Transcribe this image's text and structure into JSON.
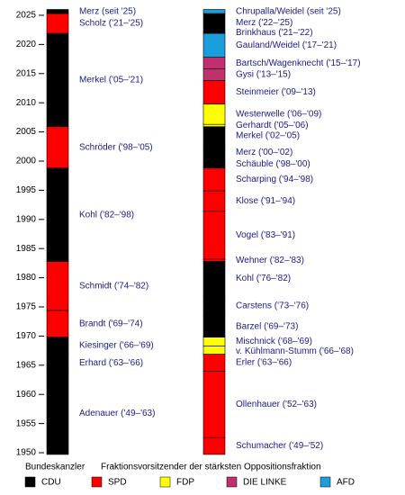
{
  "chart_data": {
    "type": "timeline",
    "ylim": [
      1949,
      2026
    ],
    "yticks": [
      1950,
      1955,
      1960,
      1965,
      1970,
      1975,
      1980,
      1985,
      1990,
      1995,
      2000,
      2005,
      2010,
      2015,
      2020,
      2025
    ],
    "columns": [
      {
        "name": "Bundeskanzler",
        "segments": [
          {
            "label": "Adenauer ('49–'63)",
            "party": "CDU",
            "start": 1949.7,
            "end": 1963.8
          },
          {
            "label": "Erhard ('63–'66)",
            "party": "CDU",
            "start": 1963.8,
            "end": 1966.9
          },
          {
            "label": "Kiesinger ('66–'69)",
            "party": "CDU",
            "start": 1966.9,
            "end": 1969.8
          },
          {
            "label": "Brandt ('69–'74)",
            "party": "SPD",
            "start": 1969.8,
            "end": 1974.4
          },
          {
            "label": "Schmidt ('74–'82)",
            "party": "SPD",
            "start": 1974.4,
            "end": 1982.8
          },
          {
            "label": "Kohl ('82–'98)",
            "party": "CDU",
            "start": 1982.8,
            "end": 1998.8
          },
          {
            "label": "Schröder ('98–'05)",
            "party": "SPD",
            "start": 1998.8,
            "end": 2005.9
          },
          {
            "label": "Merkel ('05–'21)",
            "party": "CDU",
            "start": 2005.9,
            "end": 2021.9
          },
          {
            "label": "Scholz ('21–'25)",
            "party": "SPD",
            "start": 2021.9,
            "end": 2025.3
          },
          {
            "label": "Merz (seit '25)",
            "party": "CDU",
            "start": 2025.3,
            "end": 2026
          }
        ]
      },
      {
        "name": "Fraktionsvorsitzender der stärksten Oppositionsfraktion",
        "segments": [
          {
            "label": "Schumacher ('49–'52)",
            "party": "SPD",
            "start": 1949.7,
            "end": 1952.6
          },
          {
            "label": "Ollenhauer ('52–'63)",
            "party": "SPD",
            "start": 1952.6,
            "end": 1964
          },
          {
            "label": "Erler ('63–'66)",
            "party": "SPD",
            "start": 1964,
            "end": 1966.9
          },
          {
            "label": "v. Kühlmann-Stumm ('66–'68)",
            "party": "FDP",
            "start": 1966.9,
            "end": 1968.3
          },
          {
            "label": "Mischnick ('68–'69)",
            "party": "FDP",
            "start": 1968.3,
            "end": 1969.8
          },
          {
            "label": "Barzel ('69–'73)",
            "party": "CDU",
            "start": 1969.8,
            "end": 1973.4
          },
          {
            "label": "Carstens ('73–'76)",
            "party": "CDU",
            "start": 1973.4,
            "end": 1976.9
          },
          {
            "label": "Kohl ('76–'82)",
            "party": "CDU",
            "start": 1976.9,
            "end": 1982.8
          },
          {
            "label": "Wehner ('82–'83)",
            "party": "SPD",
            "start": 1982.8,
            "end": 1983.2
          },
          {
            "label": "Vogel ('83–'91)",
            "party": "SPD",
            "start": 1983.2,
            "end": 1991.4
          },
          {
            "label": "Klose ('91–'94)",
            "party": "SPD",
            "start": 1991.4,
            "end": 1994.9
          },
          {
            "label": "Scharping ('94–'98)",
            "party": "SPD",
            "start": 1994.9,
            "end": 1998.8
          },
          {
            "label": "Schäuble ('98–'00)",
            "party": "CDU",
            "start": 1998.8,
            "end": 2000.1
          },
          {
            "label": "Merz ('00–'02)",
            "party": "CDU",
            "start": 2000.1,
            "end": 2002.8
          },
          {
            "label": "Merkel ('02–'05)",
            "party": "CDU",
            "start": 2002.8,
            "end": 2005.9
          },
          {
            "label": "Gerhardt ('05–'06)",
            "party": "FDP",
            "start": 2005.9,
            "end": 2006.3
          },
          {
            "label": "Westerwelle ('06–'09)",
            "party": "FDP",
            "start": 2006.3,
            "end": 2009.8
          },
          {
            "label": "Steinmeier ('09–'13)",
            "party": "SPD",
            "start": 2009.8,
            "end": 2013.8
          },
          {
            "label": "Gysi ('13–'15)",
            "party": "DIE LINKE",
            "start": 2013.8,
            "end": 2015.8
          },
          {
            "label": "Bartsch/Wagenknecht ('15–'17)",
            "party": "DIE LINKE",
            "start": 2015.8,
            "end": 2017.8
          },
          {
            "label": "Gauland/Weidel ('17–'21)",
            "party": "AFD",
            "start": 2017.8,
            "end": 2021.9
          },
          {
            "label": "Brinkhaus ('21–'22)",
            "party": "CDU",
            "start": 2021.9,
            "end": 2022.1
          },
          {
            "label": "Merz ('22–'25)",
            "party": "CDU",
            "start": 2022.1,
            "end": 2025.3
          },
          {
            "label": "Chrupalla/Weidel (seit '25)",
            "party": "AFD",
            "start": 2025.3,
            "end": 2026
          }
        ]
      }
    ],
    "legend": [
      {
        "name": "CDU",
        "color": "#000000"
      },
      {
        "name": "SPD",
        "color": "#ff0000"
      },
      {
        "name": "FDP",
        "color": "#ffff00"
      },
      {
        "name": "DIE LINKE",
        "color": "#c0306e"
      },
      {
        "name": "AFD",
        "color": "#1a9fdc"
      }
    ]
  }
}
